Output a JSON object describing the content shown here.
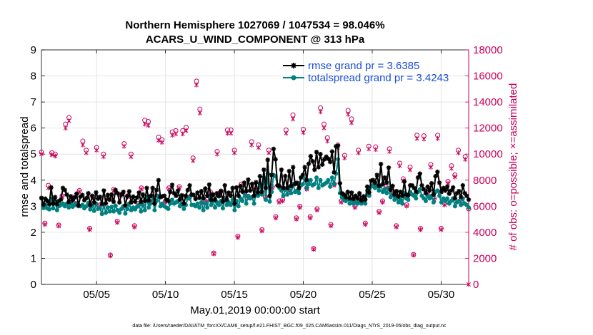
{
  "chart_data": {
    "type": "line",
    "title_line1": "Northern Hemisphere 1027069 / 1047534 = 98.046%",
    "title_line2": "ACARS_U_WIND_COMPONENT @ 313 hPa",
    "xlabel": "May.01,2019 00:00:00 start",
    "ylabel_left": "rmse and totalspread",
    "ylabel_right": "# of obs: o=possible; ×=assimilated",
    "footer": "data file: /Users/raeder/DAI/ATM_forcXX/CAM6_setup/f.e21.FHIST_BGC.f09_025.CAM6assim.011/Diags_NTrS_2019-05/obs_diag_output.nc",
    "xlim": [
      1,
      32
    ],
    "ylim_left": [
      0,
      9
    ],
    "ylim_right": [
      0,
      18000
    ],
    "x_ticks": [
      5,
      10,
      15,
      20,
      25,
      30
    ],
    "x_tick_labels": [
      "05/05",
      "05/10",
      "05/15",
      "05/20",
      "05/25",
      "05/30"
    ],
    "y_ticks_left": [
      "0",
      "1",
      "2",
      "3",
      "4",
      "5",
      "6",
      "7",
      "8",
      "9"
    ],
    "y_ticks_right": [
      "0",
      "2000",
      "4000",
      "6000",
      "8000",
      "10000",
      "12000",
      "14000",
      "16000",
      "18000"
    ],
    "colors": {
      "rmse": "#000000",
      "spread": "#00807f",
      "obs": "#c8005a",
      "legend_text": "#1a4fd6",
      "grid": "#e4e4e4"
    },
    "series": [
      {
        "name": "rmse grand pr = 3.6385",
        "values": [
          3.32,
          3.06,
          3.29,
          3.2,
          3.08,
          3.72,
          3.1,
          3.35,
          3.08,
          3.2,
          3.26,
          3.7,
          3.62,
          3.45,
          3.16,
          3.38,
          3.22,
          3.33,
          3.48,
          3.03,
          3.37,
          3.43,
          3.23,
          3.31,
          3.5,
          3.05,
          3.4,
          3.14,
          3.53,
          3.29,
          3.36,
          3.09,
          3.6,
          3.11,
          3.43,
          3.25,
          3.45,
          3.17,
          3.62,
          3.5,
          3.15,
          3.45,
          3.55,
          3.03,
          3.38,
          3.57,
          3.15,
          3.37,
          3.18,
          3.33,
          3.52,
          3.17,
          3.45,
          3.2,
          3.7,
          3.22,
          3.4,
          3.7,
          3.1,
          3.62,
          4.0,
          3.35,
          3.38,
          3.4,
          3.25,
          3.2,
          3.55,
          3.82,
          3.5,
          3.4,
          3.6,
          3.25,
          3.42,
          3.1,
          3.4,
          3.62,
          3.8,
          3.45,
          3.43,
          3.28,
          3.52,
          3.32,
          3.58,
          3.3,
          3.68,
          3.4,
          3.83,
          3.24,
          3.45,
          3.25,
          3.5,
          3.38,
          3.59,
          3.18,
          3.8,
          3.25,
          3.52,
          3.4,
          3.7,
          3.1,
          3.72,
          3.4,
          3.77,
          3.56,
          3.9,
          3.58,
          4.02,
          3.6,
          3.86,
          3.4,
          3.92,
          3.52,
          4.15,
          3.55,
          4.4,
          3.7,
          4.78,
          3.4,
          4.2,
          5.2,
          4.8,
          3.8,
          3.77,
          4.4,
          3.7,
          4.16,
          3.7,
          4.35,
          3.78,
          4.5,
          3.85,
          3.9,
          3.7,
          4.1,
          4.2,
          4.5,
          4.0,
          4.63,
          4.92,
          4.73,
          4.4,
          5.08,
          4.5,
          5.0,
          4.6,
          4.8,
          4.9,
          4.82,
          4.7,
          5.1,
          4.3,
          5.3,
          5.32,
          3.88,
          3.5,
          3.45,
          3.35,
          3.55,
          3.3,
          3.52,
          3.28,
          3.4,
          3.3,
          3.5,
          3.22,
          3.38,
          3.25,
          3.75,
          3.52,
          3.98,
          4.0,
          3.9,
          4.2,
          3.78,
          4.62,
          3.85,
          4.1,
          3.9,
          4.48,
          3.63,
          3.78,
          3.45,
          3.58,
          3.37,
          3.55,
          3.4,
          3.95,
          3.45,
          3.42,
          3.8,
          3.8,
          3.7,
          3.55,
          4.1,
          4.25,
          3.8,
          3.65,
          3.5,
          3.75,
          3.6,
          3.88,
          3.45,
          4.15,
          4.32,
          3.9,
          3.55,
          3.7,
          3.6,
          3.75,
          3.48,
          3.6,
          3.72,
          3.3,
          3.5,
          3.58,
          3.35,
          3.8,
          3.5,
          3.4,
          3.25
        ]
      },
      {
        "name": "totalspread grand pr = 3.4243",
        "values": [
          3.3,
          2.93,
          3.05,
          2.92,
          2.88,
          3.28,
          2.92,
          3.2,
          2.85,
          3.0,
          3.05,
          3.1,
          3.0,
          3.1,
          2.95,
          3.1,
          2.98,
          3.05,
          3.1,
          3.0,
          3.0,
          3.05,
          2.92,
          3.0,
          3.12,
          2.88,
          3.02,
          2.82,
          3.1,
          2.9,
          2.92,
          2.7,
          3.05,
          2.75,
          2.95,
          2.8,
          2.98,
          2.8,
          3.02,
          2.85,
          2.75,
          2.9,
          3.0,
          2.72,
          2.9,
          3.1,
          2.85,
          2.95,
          2.88,
          2.98,
          3.05,
          2.8,
          3.05,
          2.85,
          3.35,
          2.95,
          3.1,
          3.4,
          2.85,
          3.2,
          3.4,
          3.0,
          3.1,
          3.0,
          2.95,
          2.9,
          3.1,
          3.25,
          3.1,
          3.15,
          3.2,
          3.0,
          3.1,
          2.9,
          3.05,
          3.3,
          3.35,
          3.05,
          3.05,
          3.0,
          3.1,
          2.95,
          3.15,
          2.85,
          3.12,
          2.95,
          3.4,
          3.05,
          3.2,
          2.95,
          3.15,
          3.05,
          3.2,
          2.92,
          3.3,
          3.05,
          3.15,
          3.05,
          3.25,
          2.85,
          3.2,
          3.0,
          3.3,
          3.2,
          3.5,
          3.1,
          3.4,
          3.3,
          3.35,
          3.1,
          3.55,
          3.4,
          3.85,
          3.45,
          4.1,
          3.25,
          4.25,
          3.18,
          3.55,
          4.2,
          4.15,
          3.8,
          3.7,
          3.6,
          3.4,
          3.65,
          3.45,
          3.75,
          3.5,
          3.85,
          3.55,
          3.6,
          3.5,
          3.8,
          3.85,
          4.05,
          3.7,
          3.85,
          4.0,
          3.8,
          3.85,
          4.1,
          3.7,
          4.0,
          3.8,
          3.85,
          3.9,
          4.0,
          3.75,
          4.1,
          3.85,
          4.25,
          4.8,
          3.5,
          3.35,
          3.25,
          3.2,
          3.3,
          3.1,
          3.25,
          3.1,
          3.15,
          3.1,
          3.2,
          3.1,
          3.15,
          3.1,
          3.6,
          3.4,
          3.75,
          3.8,
          3.7,
          3.8,
          3.6,
          3.8,
          3.55,
          3.65,
          3.5,
          3.7,
          3.35,
          3.45,
          3.25,
          3.35,
          3.15,
          3.25,
          3.1,
          3.5,
          3.3,
          3.25,
          3.55,
          3.45,
          3.4,
          3.3,
          3.55,
          3.65,
          3.4,
          3.3,
          3.2,
          3.4,
          3.3,
          3.4,
          3.15,
          3.55,
          3.6,
          3.4,
          3.15,
          3.3,
          3.2,
          3.3,
          3.1,
          3.2,
          3.3,
          3.0,
          3.15,
          3.2,
          3.05,
          3.3,
          3.1,
          3.05,
          2.95
        ]
      }
    ],
    "obs_x": [
      1.0,
      1.25,
      1.5,
      1.75,
      2.0,
      2.25,
      2.5,
      2.75,
      3.0,
      3.25,
      3.5,
      3.75,
      4.0,
      4.25,
      4.5,
      4.75,
      5.0,
      5.25,
      5.5,
      5.75,
      6.0,
      6.25,
      6.5,
      6.75,
      7.0,
      7.25,
      7.5,
      7.75,
      8.0,
      8.25,
      8.5,
      8.75,
      9.0,
      9.25,
      9.5,
      9.75,
      10.0,
      10.25,
      10.5,
      10.75,
      11.0,
      11.25,
      11.5,
      11.75,
      12.0,
      12.25,
      12.5,
      12.75,
      13.0,
      13.25,
      13.5,
      13.75,
      14.0,
      14.25,
      14.5,
      14.75,
      15.0,
      15.25,
      15.5,
      15.75,
      16.0,
      16.25,
      16.5,
      16.75,
      17.0,
      17.25,
      17.5,
      17.75,
      18.0,
      18.25,
      18.5,
      18.75,
      19.0,
      19.25,
      19.5,
      19.75,
      20.0,
      20.25,
      20.5,
      20.75,
      21.0,
      21.25,
      21.5,
      21.75,
      22.0,
      22.25,
      22.5,
      22.75,
      23.0,
      23.25,
      23.5,
      23.75,
      24.0,
      24.25,
      24.5,
      24.75,
      25.0,
      25.25,
      25.5,
      25.75,
      26.0,
      26.25,
      26.5,
      26.75,
      27.0,
      27.25,
      27.5,
      27.75,
      28.0,
      28.25,
      28.5,
      28.75,
      29.0,
      29.25,
      29.5,
      29.75,
      30.0,
      30.25,
      30.5,
      30.75,
      31.0,
      31.25,
      31.5,
      31.75,
      32.0
    ],
    "obs_possible": [
      10150,
      4700,
      7600,
      10100,
      10000,
      4550,
      6800,
      12300,
      12800,
      6700,
      6200,
      7200,
      11000,
      10300,
      4300,
      6700,
      10500,
      6100,
      10000,
      6600,
      2250,
      7300,
      4850,
      6900,
      10800,
      6800,
      10000,
      4500,
      6200,
      7400,
      12600,
      12500,
      6500,
      6900,
      11300,
      11100,
      6400,
      7400,
      11700,
      11800,
      7500,
      11800,
      12050,
      6700,
      9700,
      15600,
      13450,
      6350,
      6500,
      7100,
      2400,
      10200,
      7100,
      6600,
      11850,
      11850,
      10300,
      3700,
      7700,
      7000,
      6750,
      10950,
      7500,
      10700,
      4200,
      6700,
      10300,
      7500,
      5200,
      6400,
      6500,
      11850,
      7300,
      13000,
      5100,
      6000,
      11900,
      7400,
      5200,
      2750,
      5800,
      13550,
      12300,
      11250,
      4600,
      7700,
      10700,
      6400,
      9900,
      13350,
      12700,
      6000,
      10300,
      6600,
      4700,
      10600,
      7700,
      10550,
      5600,
      6400,
      7500,
      10400,
      7100,
      4500,
      9300,
      8100,
      6100,
      9000,
      2300,
      11450,
      4300,
      11400,
      7000,
      9200,
      6600,
      11450,
      4300,
      6200,
      7900,
      9100,
      8400,
      10300,
      6300,
      9800,
      5800
    ],
    "obs_assimilated": [
      10000,
      4600,
      7400,
      9950,
      9850,
      4480,
      6700,
      12000,
      12550,
      6600,
      6100,
      7100,
      10700,
      10100,
      4200,
      6600,
      10300,
      6000,
      9800,
      6500,
      2200,
      7200,
      4750,
      6800,
      10600,
      6700,
      9800,
      4400,
      6100,
      7300,
      12300,
      12200,
      6400,
      6800,
      11050,
      10900,
      6300,
      7300,
      11450,
      11550,
      7400,
      11550,
      11800,
      6600,
      9500,
      15300,
      13150,
      6250,
      6400,
      7000,
      2350,
      10000,
      7000,
      6500,
      11600,
      11600,
      10100,
      3600,
      7600,
      6900,
      6650,
      10700,
      7400,
      10500,
      4100,
      6600,
      10100,
      7400,
      5100,
      6300,
      6400,
      11600,
      7200,
      12700,
      5000,
      5900,
      11650,
      7300,
      5100,
      2700,
      5700,
      13250,
      12000,
      11000,
      4500,
      7600,
      10500,
      6300,
      9700,
      13050,
      12400,
      5900,
      10100,
      6500,
      4600,
      10400,
      7600,
      10350,
      5500,
      6300,
      7400,
      10200,
      7000,
      4400,
      9100,
      7950,
      6000,
      8800,
      2250,
      11200,
      4200,
      11150,
      6900,
      9000,
      6500,
      11200,
      4200,
      6100,
      7750,
      8900,
      8250,
      10100,
      6200,
      9600,
      0
    ]
  }
}
